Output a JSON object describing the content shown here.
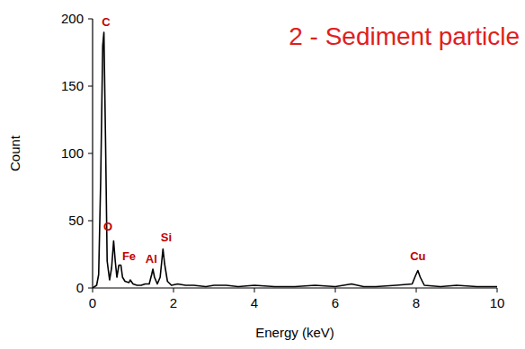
{
  "chart_data": {
    "type": "line",
    "title": "2 - Sediment particle",
    "x_label": "Energy (keV)",
    "y_label": "Count",
    "x": [
      0,
      0.1,
      0.15,
      0.2,
      0.25,
      0.28,
      0.32,
      0.36,
      0.42,
      0.47,
      0.52,
      0.56,
      0.6,
      0.65,
      0.7,
      0.74,
      0.8,
      0.9,
      0.93,
      1.0,
      1.1,
      1.2,
      1.3,
      1.4,
      1.46,
      1.49,
      1.53,
      1.6,
      1.67,
      1.71,
      1.74,
      1.78,
      1.85,
      1.95,
      2.1,
      2.3,
      2.5,
      2.8,
      3.0,
      3.3,
      3.6,
      4.0,
      4.5,
      5.0,
      5.5,
      6.0,
      6.4,
      6.7,
      7.0,
      7.5,
      7.9,
      7.98,
      8.04,
      8.1,
      8.2,
      8.6,
      9.0,
      9.5,
      10.0
    ],
    "series": [
      {
        "name": "Count",
        "color": "#000000",
        "values": [
          0,
          2,
          10,
          80,
          180,
          190,
          110,
          20,
          6,
          15,
          35,
          20,
          8,
          17,
          17,
          8,
          5,
          4,
          6,
          3,
          2,
          2,
          3,
          3,
          10,
          14,
          8,
          3,
          8,
          20,
          29,
          18,
          5,
          2,
          3,
          2,
          2,
          1,
          2,
          2,
          1,
          2,
          1,
          1,
          2,
          1,
          3,
          1,
          1,
          2,
          3,
          9,
          13,
          8,
          2,
          1,
          2,
          1,
          1
        ]
      }
    ],
    "annotations": [
      {
        "text": "C",
        "x": 0.33,
        "y": 195,
        "color": "#c00000"
      },
      {
        "text": "O",
        "x": 0.38,
        "y": 43,
        "color": "#c00000"
      },
      {
        "text": "Fe",
        "x": 0.9,
        "y": 21,
        "color": "#c00000"
      },
      {
        "text": "Al",
        "x": 1.45,
        "y": 19,
        "color": "#c00000"
      },
      {
        "text": "Si",
        "x": 1.82,
        "y": 35,
        "color": "#c00000"
      },
      {
        "text": "Cu",
        "x": 8.04,
        "y": 21,
        "color": "#c00000"
      }
    ],
    "title_color": "#e0201b",
    "xlim": [
      0,
      10
    ],
    "ylim": [
      0,
      200
    ],
    "xticks": [
      0,
      2,
      4,
      6,
      8,
      10
    ],
    "yticks": [
      0,
      50,
      100,
      150,
      200
    ],
    "grid": false
  }
}
